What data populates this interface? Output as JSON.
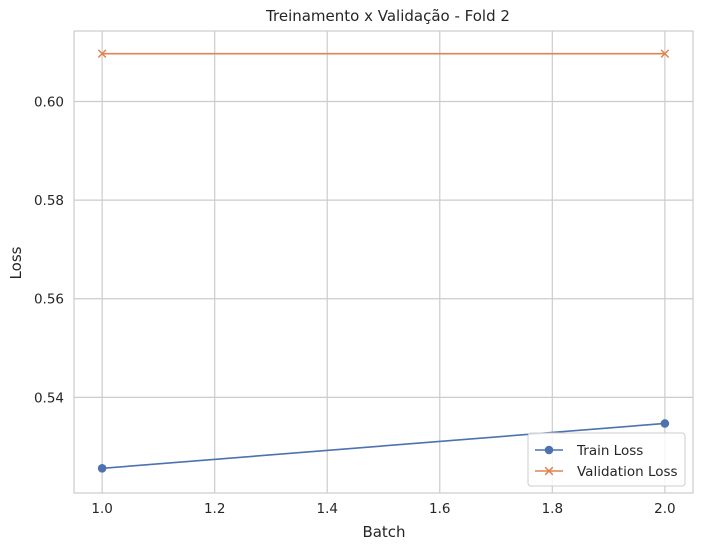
{
  "chart_data": {
    "type": "line",
    "title": "Treinamento x Validação - Fold 2",
    "xlabel": "Batch",
    "ylabel": "Loss",
    "xlim": [
      0.95,
      2.05
    ],
    "ylim": [
      0.5206,
      0.6143
    ],
    "x_ticks": [
      1.0,
      1.2,
      1.4,
      1.6,
      1.8,
      2.0
    ],
    "x_tick_labels": [
      "1.0",
      "1.2",
      "1.4",
      "1.6",
      "1.8",
      "2.0"
    ],
    "y_ticks": [
      0.54,
      0.56,
      0.58,
      0.6
    ],
    "y_tick_labels": [
      "0.54",
      "0.56",
      "0.58",
      "0.60"
    ],
    "grid": true,
    "legend_position": "lower-right",
    "series": [
      {
        "name": "Train Loss",
        "x": [
          1.0,
          2.0
        ],
        "values": [
          0.5256,
          0.5347
        ],
        "color": "#4c72b0",
        "marker": "circle"
      },
      {
        "name": "Validation Loss",
        "x": [
          1.0,
          2.0
        ],
        "values": [
          0.6097,
          0.6097
        ],
        "color": "#dd8452",
        "marker": "x"
      }
    ]
  }
}
